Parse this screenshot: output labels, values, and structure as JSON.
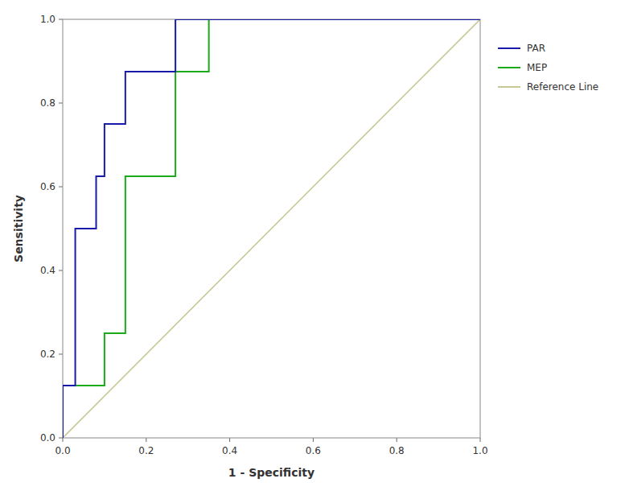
{
  "chart_data": {
    "type": "line",
    "x_label": "1 - Specificity",
    "y_label": "Sensitivity",
    "series": [
      {
        "name": "PAR",
        "color": "#1a1aaa",
        "x": [
          0.0,
          0.0,
          0.03,
          0.03,
          0.08,
          0.08,
          0.1,
          0.1,
          0.13,
          0.13,
          0.15,
          0.15,
          0.25,
          0.27,
          0.27,
          0.35,
          0.35,
          1.0
        ],
        "values": [
          0.0,
          0.125,
          0.125,
          0.5,
          0.5,
          0.625,
          0.625,
          0.75,
          0.75,
          0.75,
          0.75,
          0.875,
          0.875,
          0.875,
          1.0,
          1.0,
          1.0,
          1.0
        ]
      },
      {
        "name": "MEP",
        "color": "#1aaa1a",
        "x": [
          0.0,
          0.0,
          0.1,
          0.1,
          0.13,
          0.13,
          0.15,
          0.15,
          0.2,
          0.2,
          0.27,
          0.27,
          0.3,
          0.35,
          0.35,
          1.0
        ],
        "values": [
          0.0,
          0.125,
          0.125,
          0.25,
          0.25,
          0.25,
          0.25,
          0.625,
          0.625,
          0.625,
          0.625,
          0.875,
          0.875,
          0.875,
          1.0,
          1.0
        ]
      },
      {
        "name": "Reference Line",
        "color": "#c8c896",
        "x": [
          0.0,
          1.0
        ],
        "values": [
          0.0,
          1.0
        ]
      }
    ],
    "xlim": [
      0.0,
      1.0
    ],
    "ylim": [
      0.0,
      1.0
    ],
    "xticks": [
      {
        "value": 0,
        "label": "0.0"
      },
      0.2,
      0.4,
      0.6,
      0.8,
      {
        "value": 1,
        "label": "1.0"
      }
    ],
    "yticks": [
      {
        "value": 0,
        "label": "0.0"
      },
      0.2,
      0.4,
      0.6,
      0.8,
      {
        "value": 1,
        "label": "1.0"
      }
    ],
    "grid": false,
    "legend": "right"
  }
}
